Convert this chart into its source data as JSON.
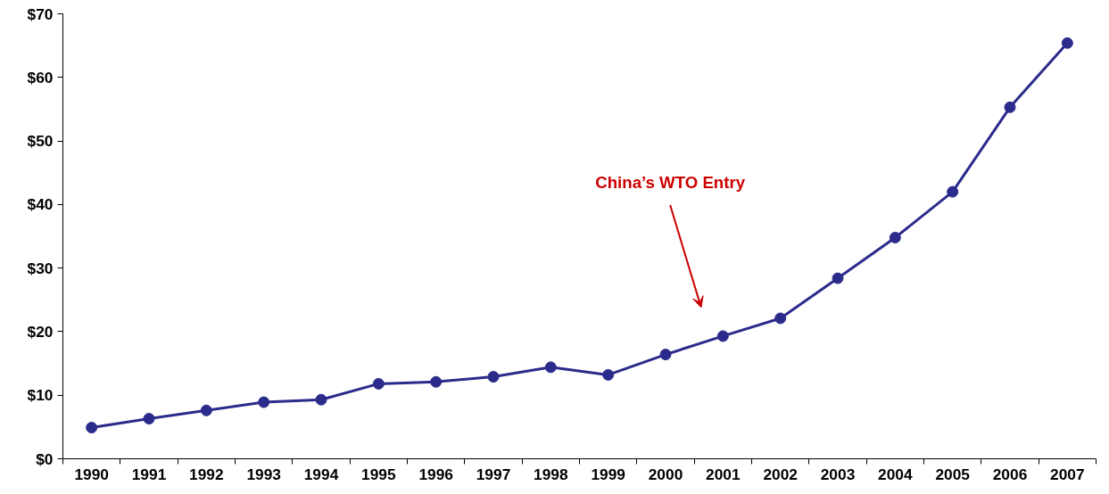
{
  "chart_data": {
    "type": "line",
    "categories": [
      "1990",
      "1991",
      "1992",
      "1993",
      "1994",
      "1995",
      "1996",
      "1997",
      "1998",
      "1999",
      "2000",
      "2001",
      "2002",
      "2003",
      "2004",
      "2005",
      "2006",
      "2007"
    ],
    "series": [
      {
        "color": "#2b2b8c",
        "values": [
          4.9,
          6.3,
          7.6,
          8.9,
          9.3,
          11.8,
          12.1,
          12.9,
          14.4,
          13.2,
          16.4,
          19.3,
          22.1,
          28.4,
          34.8,
          42.0,
          55.3,
          65.4
        ]
      }
    ],
    "ylim": [
      0,
      70
    ],
    "yticks": [
      {
        "value": 0,
        "label": "$0"
      },
      {
        "value": 10,
        "label": "$10"
      },
      {
        "value": 20,
        "label": "$20"
      },
      {
        "value": 30,
        "label": "$30"
      },
      {
        "value": 40,
        "label": "$40"
      },
      {
        "value": 50,
        "label": "$50"
      },
      {
        "value": 60,
        "label": "$60"
      },
      {
        "value": 70,
        "label": "$70"
      }
    ],
    "annotations": [
      "China’s WTO Entry"
    ],
    "marker": "circle",
    "line_style": "solid",
    "grid": false
  }
}
